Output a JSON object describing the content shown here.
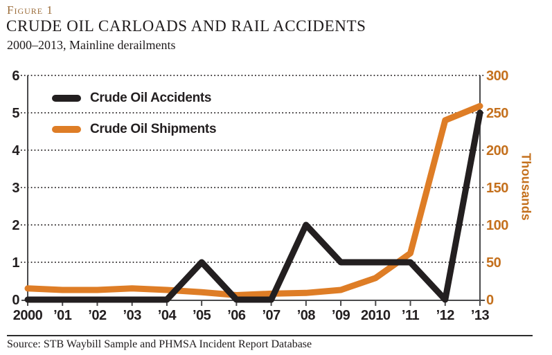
{
  "figure_label": "Figure 1",
  "title": "CRUDE OIL CARLOADS AND RAIL ACCIDENTS",
  "subtitle": "2000–2013, Mainline derailments",
  "source": "Source: STB Waybill Sample and PHMSA Incident Report Database",
  "colors": {
    "accidents_line": "#231F20",
    "shipments_line": "#DE7D26",
    "right_axis_text": "#C4701D",
    "figure_label_text": "#9A6B38",
    "axis": "#4A4A4C",
    "gridline": "#231F20"
  },
  "legend": [
    {
      "label": "Crude Oil Accidents",
      "color": "#231F20"
    },
    {
      "label": "Crude Oil Shipments",
      "color": "#DE7D26"
    }
  ],
  "chart_data": {
    "type": "line",
    "categories": [
      "2000",
      "’01",
      "’02",
      "’03",
      "’04",
      "’05",
      "’06",
      "’07",
      "’08",
      "’09",
      "2010",
      "’11",
      "’12",
      "’13"
    ],
    "series": [
      {
        "name": "Crude Oil Accidents",
        "axis": "left",
        "color": "#231F20",
        "values": [
          0,
          0,
          0,
          0,
          0,
          1,
          0,
          0,
          2,
          1,
          1,
          1,
          0,
          5
        ]
      },
      {
        "name": "Crude Oil Shipments",
        "axis": "right",
        "color": "#DE7D26",
        "values": [
          15,
          13,
          13,
          15,
          13,
          10,
          6,
          8,
          9,
          13,
          29,
          62,
          240,
          259
        ]
      }
    ],
    "left_axis": {
      "ticks": [
        0,
        1,
        2,
        3,
        4,
        5,
        6
      ],
      "min": 0,
      "max": 6
    },
    "right_axis": {
      "ticks": [
        0,
        50,
        100,
        150,
        200,
        250,
        300
      ],
      "min": 0,
      "max": 300,
      "label": "Thousands"
    },
    "grid": "dotted horizontal gridlines at each left-axis tick",
    "legend_position": "inside top-left"
  }
}
